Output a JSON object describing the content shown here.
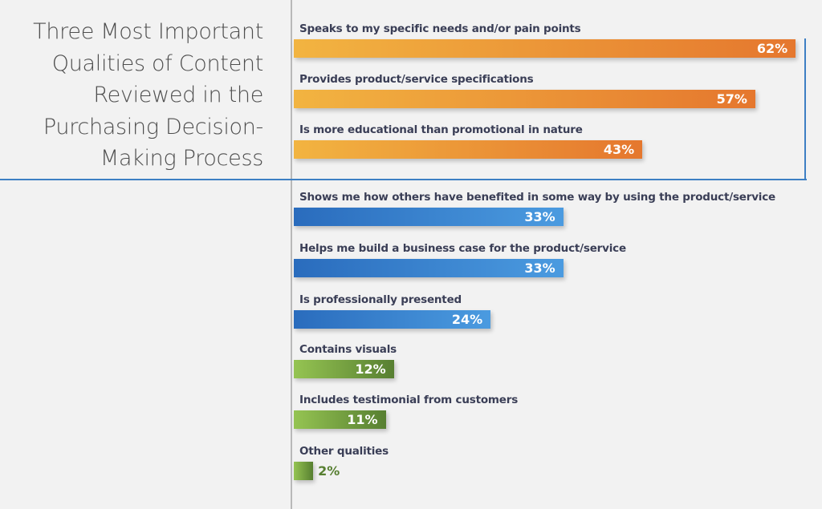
{
  "chart_data": {
    "type": "bar",
    "orientation": "horizontal",
    "title": "Three Most Important Qualities of Content Reviewed in the Purchasing Decision-Making Process",
    "title_lines": [
      "Three Most Important",
      "Qualities of Content",
      "Reviewed in the",
      "Purchasing Decision-",
      "Making Process"
    ],
    "unit": "%",
    "xlim": [
      0,
      62
    ],
    "grid": false,
    "highlight": "top three bars boxed with blue border",
    "categories": [
      "Speaks to my specific needs and/or pain points",
      "Provides product/service specifications",
      "Is more educational than promotional in nature",
      "Shows me how others have benefited in some way by using the product/service",
      "Helps me build a business case for the product/service",
      "Is professionally presented",
      "Contains visuals",
      "Includes testimonial from customers",
      "Other qualities"
    ],
    "values": [
      62,
      57,
      43,
      33,
      33,
      24,
      12,
      11,
      2
    ],
    "value_labels": [
      "62%",
      "57%",
      "43%",
      "33%",
      "33%",
      "24%",
      "12%",
      "11%",
      "2%"
    ],
    "color_groups": [
      "orange",
      "orange",
      "orange",
      "blue",
      "blue",
      "blue",
      "green",
      "green",
      "green"
    ]
  },
  "colors": {
    "orange": [
      "#f2b441",
      "#e5772e"
    ],
    "blue": [
      "#2a6cbd",
      "#4b9be0"
    ],
    "green": [
      "#95c452",
      "#577f31"
    ],
    "label": "#3a3e56",
    "frame": "#3d7fc4",
    "background": "#f2f2f2"
  }
}
